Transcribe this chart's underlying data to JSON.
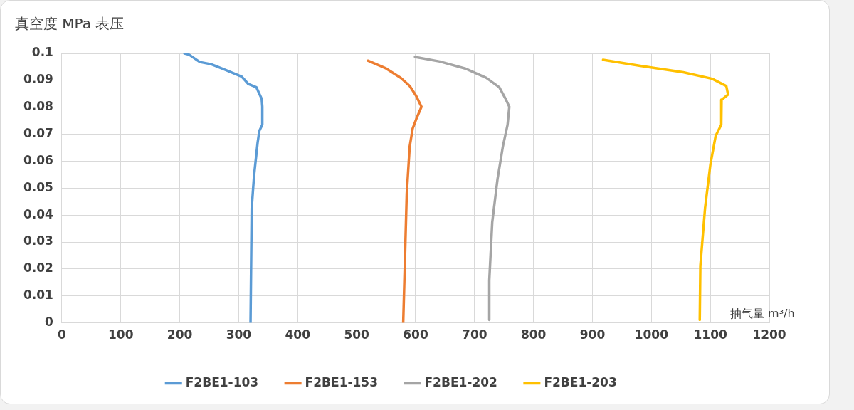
{
  "chart_data": {
    "type": "line",
    "title": "真空度 MPa 表压",
    "xlabel": "抽气量 m³/h",
    "xlim": [
      0,
      1200
    ],
    "xticks": [
      0,
      100,
      200,
      300,
      400,
      500,
      600,
      700,
      800,
      900,
      1000,
      1100,
      1200
    ],
    "ylim": [
      0,
      0.1
    ],
    "yticks": [
      0,
      0.01,
      0.02,
      0.03,
      0.04,
      0.05,
      0.06,
      0.07,
      0.08,
      0.09,
      0.1
    ],
    "grid": true,
    "legend": "bottom",
    "marker": "none",
    "line_style": "solid",
    "series": [
      {
        "name": "F2BE1-103",
        "color": "#5b9bd5",
        "x": [
          208,
          216,
          234,
          253,
          275,
          305,
          316,
          330,
          339,
          340,
          340,
          335,
          332,
          326,
          322,
          320
        ],
        "values": [
          0.1,
          0.0995,
          0.0968,
          0.096,
          0.0941,
          0.0914,
          0.0887,
          0.0874,
          0.0831,
          0.0802,
          0.0735,
          0.0713,
          0.0668,
          0.0547,
          0.0426,
          0
        ]
      },
      {
        "name": "F2BE1-153",
        "color": "#ed7d31",
        "x": [
          519,
          550,
          575,
          590,
          601,
          610,
          602,
          595,
          590,
          585,
          581,
          579
        ],
        "values": [
          0.0973,
          0.0944,
          0.0909,
          0.0879,
          0.0842,
          0.0802,
          0.0761,
          0.0721,
          0.0654,
          0.048,
          0.0158,
          0
        ]
      },
      {
        "name": "F2BE1-202",
        "color": "#a5a5a5",
        "x": [
          599,
          641,
          684,
          720,
          742,
          752,
          759,
          756,
          748,
          739,
          730,
          725,
          725
        ],
        "values": [
          0.0987,
          0.097,
          0.0944,
          0.0909,
          0.0874,
          0.0834,
          0.0802,
          0.0735,
          0.0654,
          0.0534,
          0.0373,
          0.0158,
          0.0011
        ]
      },
      {
        "name": "F2BE1-203",
        "color": "#ffc000",
        "x": [
          918,
          981,
          1054,
          1103,
          1127,
          1130,
          1119,
          1118,
          1119,
          1109,
          1100,
          1091,
          1083,
          1082
        ],
        "values": [
          0.0976,
          0.0954,
          0.093,
          0.0906,
          0.0879,
          0.0847,
          0.0828,
          0.0802,
          0.0735,
          0.0694,
          0.0587,
          0.0426,
          0.0212,
          0.0011
        ]
      }
    ]
  }
}
